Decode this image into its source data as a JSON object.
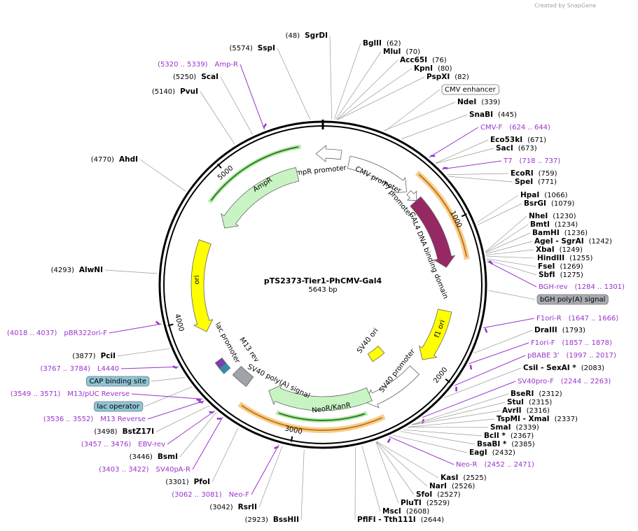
{
  "header": {
    "credit": "Created by SnapGene"
  },
  "map": {
    "name": "pTS2373-Tier1-PhCMV-Gal4",
    "length": "5643 bp",
    "ticks": [
      "1000",
      "2000",
      "3000",
      "4000",
      "5000"
    ]
  },
  "sites": [
    {
      "name": "SgrDI",
      "location": "(48)"
    },
    {
      "name": "BglII",
      "location": "(62)"
    },
    {
      "name": "MluI",
      "location": "(70)"
    },
    {
      "name": "Acc65I",
      "location": "(76)"
    },
    {
      "name": "KpnI",
      "location": "(80)"
    },
    {
      "name": "PspXI",
      "location": "(82)"
    },
    {
      "name": "CMV enhancer",
      "style": "box"
    },
    {
      "name": "NdeI",
      "location": "(339)"
    },
    {
      "name": "SnaBI",
      "location": "(445)"
    },
    {
      "name": "CMV-F",
      "range": "(624 .. 644)",
      "style": "primer"
    },
    {
      "name": "Eco53kI",
      "location": "(671)"
    },
    {
      "name": "SacI",
      "location": "(673)"
    },
    {
      "name": "T7",
      "range": "(718 .. 737)",
      "style": "primer"
    },
    {
      "name": "EcoRI",
      "location": "(759)"
    },
    {
      "name": "SpeI",
      "location": "(771)"
    },
    {
      "name": "HpaI",
      "location": "(1066)"
    },
    {
      "name": "BsrGI",
      "location": "(1079)"
    },
    {
      "name": "NheI",
      "location": "(1230)"
    },
    {
      "name": "BmtI",
      "location": "(1234)"
    },
    {
      "name": "BamHI",
      "location": "(1236)"
    },
    {
      "name": "AgeI  - SgrAI",
      "location": "(1242)"
    },
    {
      "name": "XbaI",
      "location": "(1249)"
    },
    {
      "name": "HindIII",
      "location": "(1255)"
    },
    {
      "name": "FseI",
      "location": "(1269)"
    },
    {
      "name": "SbfI",
      "location": "(1275)"
    },
    {
      "name": "BGH-rev",
      "range": "(1284 .. 1301)",
      "style": "primer"
    },
    {
      "name": "bGH poly(A) signal",
      "style": "gray-box"
    },
    {
      "name": "F1ori-R",
      "range": "(1647 .. 1666)",
      "style": "primer"
    },
    {
      "name": "DraIII",
      "location": "(1793)"
    },
    {
      "name": "F1ori-F",
      "range": "(1857 .. 1878)",
      "style": "primer"
    },
    {
      "name": "pBABE 3'",
      "range": "(1997 .. 2017)",
      "style": "primer"
    },
    {
      "name": "CsiI  - SexAI *",
      "location": "(2083)"
    },
    {
      "name": "SV40pro-F",
      "range": "(2244 .. 2263)",
      "style": "primer"
    },
    {
      "name": "BseRI",
      "location": "(2312)"
    },
    {
      "name": "StuI",
      "location": "(2315)"
    },
    {
      "name": "AvrII",
      "location": "(2316)"
    },
    {
      "name": "TspMI  - XmaI",
      "location": "(2337)"
    },
    {
      "name": "SmaI",
      "location": "(2339)"
    },
    {
      "name": "BclI *",
      "location": "(2367)"
    },
    {
      "name": "BsaBI *",
      "location": "(2385)"
    },
    {
      "name": "EagI",
      "location": "(2432)"
    },
    {
      "name": "Neo-R",
      "range": "(2452 .. 2471)",
      "style": "primer"
    },
    {
      "name": "KasI",
      "location": "(2525)"
    },
    {
      "name": "NarI",
      "location": "(2526)"
    },
    {
      "name": "SfoI",
      "location": "(2527)"
    },
    {
      "name": "PluTI",
      "location": "(2529)"
    },
    {
      "name": "MscI",
      "location": "(2608)"
    },
    {
      "name": "PflFI  - Tth111I",
      "location": "(2644)"
    },
    {
      "name": "BssHII",
      "location": "(2923)"
    },
    {
      "name": "RsrII",
      "location": "(3042)"
    },
    {
      "name": "Neo-F",
      "range": "(3062 .. 3081)",
      "style": "primer"
    },
    {
      "name": "PfoI",
      "location": "(3301)"
    },
    {
      "name": "SV40pA-R",
      "range": "(3403 .. 3422)",
      "style": "primer"
    },
    {
      "name": "BsmI",
      "location": "(3446)"
    },
    {
      "name": "EBV-rev",
      "range": "(3457 .. 3476)",
      "style": "primer"
    },
    {
      "name": "BstZ17I",
      "location": "(3498)"
    },
    {
      "name": "M13 Reverse",
      "range": "(3536 .. 3552)",
      "style": "primer"
    },
    {
      "name": "lac operator",
      "style": "blue-box"
    },
    {
      "name": "M13/pUC Reverse",
      "range": "(3549 .. 3571)",
      "style": "primer"
    },
    {
      "name": "CAP binding site",
      "style": "blue-box"
    },
    {
      "name": "L4440",
      "range": "(3767 .. 3784)",
      "style": "primer"
    },
    {
      "name": "PciI",
      "location": "(3877)"
    },
    {
      "name": "pBR322ori-F",
      "range": "(4018 .. 4037)",
      "style": "primer"
    },
    {
      "name": "AlwNI",
      "location": "(4293)"
    },
    {
      "name": "AhdI",
      "location": "(4770)"
    },
    {
      "name": "PvuI",
      "location": "(5140)"
    },
    {
      "name": "ScaI",
      "location": "(5250)"
    },
    {
      "name": "Amp-R",
      "range": "(5320 .. 5339)",
      "style": "primer"
    },
    {
      "name": "SspI",
      "location": "(5574)"
    }
  ],
  "features": [
    "AmpR promoter",
    "AmpR",
    "ori",
    "CMV promoter",
    "T7 promoter",
    "GAL4 DNA binding domain",
    "f1 ori",
    "SV40 promoter",
    "SV40 ori",
    "NeoR/KanR",
    "SV40 poly(A) signal",
    "M13 rev",
    "lac promoter"
  ]
}
